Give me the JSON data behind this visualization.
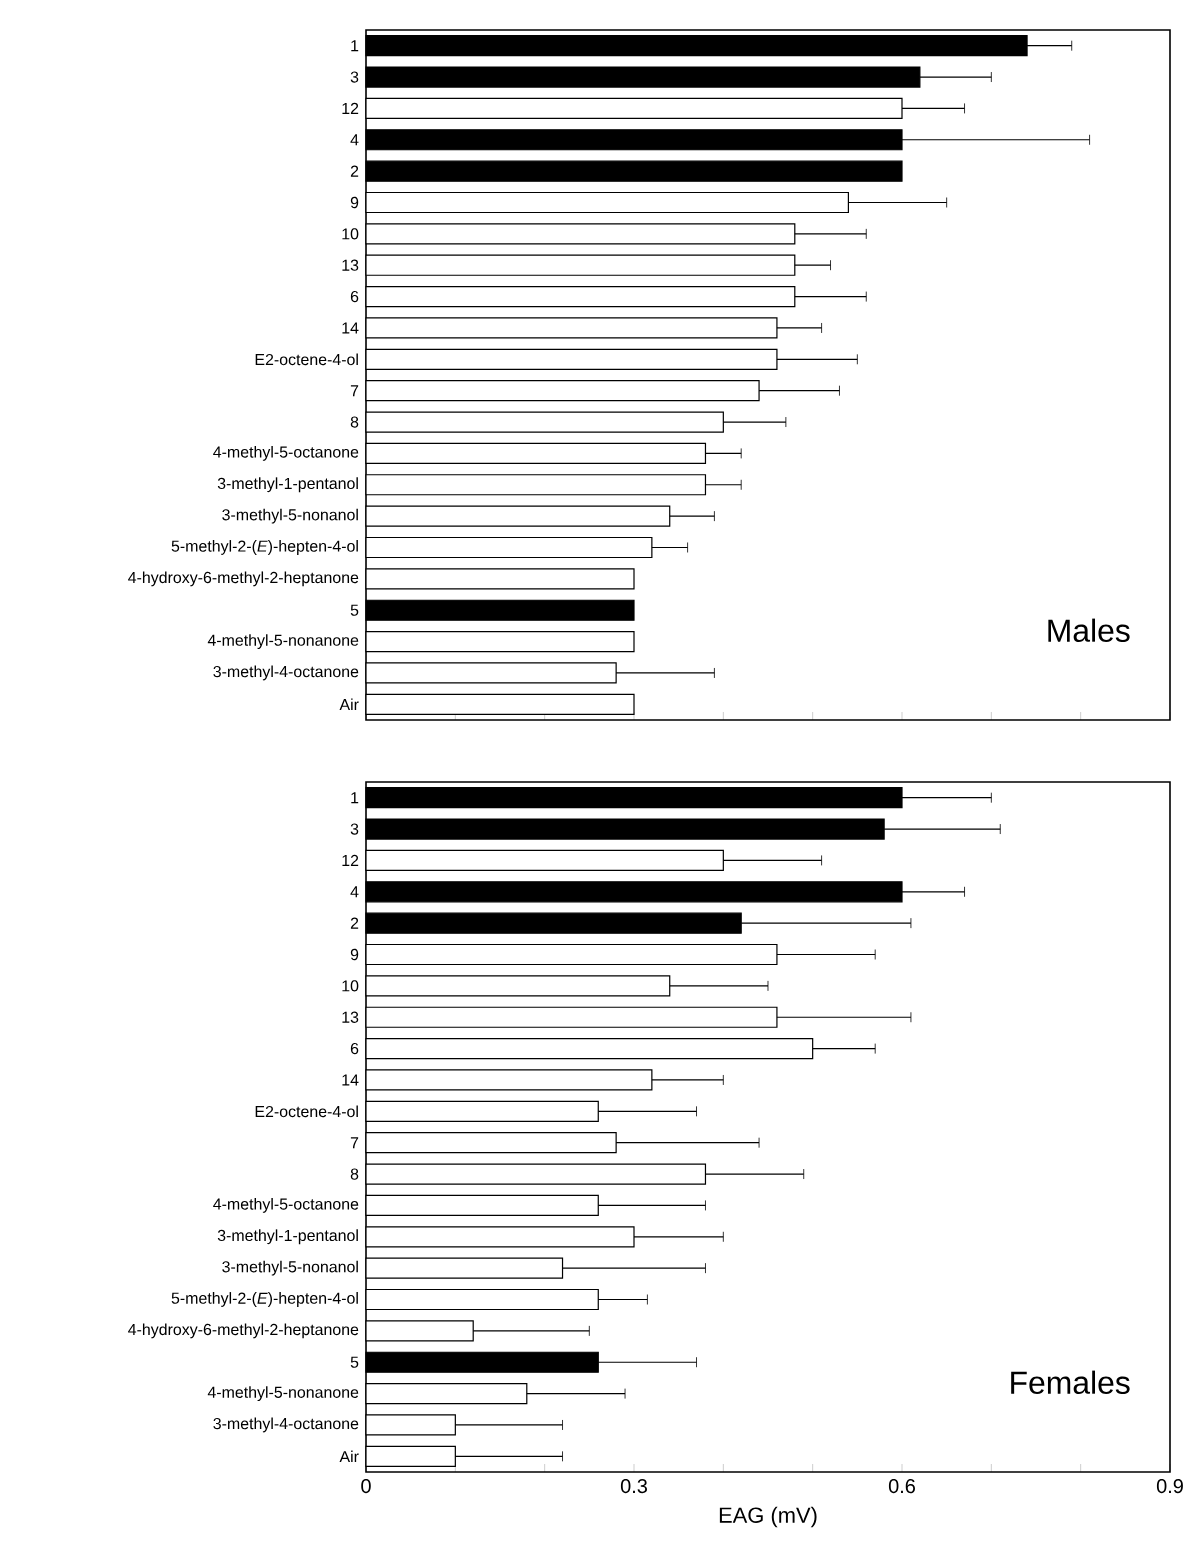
{
  "chart_data": [
    {
      "type": "bar",
      "orientation": "horizontal",
      "tick_labels": "y",
      "categories": [
        "1",
        "3",
        "12",
        "4",
        "2",
        "9",
        "10",
        "13",
        "6",
        "14",
        "E2-octene-4-ol",
        "7",
        "8",
        "4-methyl-5-octanone",
        "3-methyl-1-pentanol",
        "3-methyl-5-nonanol",
        "5-methyl-2-(*E*)-hepten-4-ol",
        "4-hydroxy-6-methyl-2-heptanone",
        "5",
        "4-methyl-5-nonanone",
        "3-methyl-4-octanone",
        "Air"
      ],
      "values": [
        0.74,
        0.62,
        0.6,
        0.6,
        0.6,
        0.54,
        0.48,
        0.48,
        0.48,
        0.46,
        0.46,
        0.44,
        0.4,
        0.38,
        0.38,
        0.34,
        0.32,
        0.3,
        0.3,
        0.3,
        0.28,
        0.3
      ],
      "errors": [
        0.05,
        0.08,
        0.07,
        0.21,
        null,
        0.11,
        0.08,
        0.04,
        0.08,
        0.05,
        0.09,
        0.09,
        0.07,
        0.04,
        0.04,
        0.05,
        0.04,
        null,
        null,
        null,
        0.11,
        null
      ],
      "colors": [
        "#000000",
        "#000000",
        "#ffffff",
        "#000000",
        "#000000",
        "#ffffff",
        "#ffffff",
        "#ffffff",
        "#ffffff",
        "#ffffff",
        "#ffffff",
        "#ffffff",
        "#ffffff",
        "#ffffff",
        "#ffffff",
        "#ffffff",
        "#ffffff",
        "#ffffff",
        "#000000",
        "#ffffff",
        "#ffffff",
        "#ffffff"
      ],
      "xlim": [
        0,
        0.9
      ],
      "xticks": [
        0,
        {
          "value": 0.1,
          "label": null
        },
        {
          "value": 0.2,
          "label": null
        },
        0.3,
        {
          "value": 0.4,
          "label": null
        },
        {
          "value": 0.5,
          "label": null
        },
        0.6,
        {
          "value": 0.7,
          "label": null
        },
        {
          "value": 0.8,
          "label": null
        },
        0.9
      ],
      "annotations": [
        "Males"
      ]
    },
    {
      "type": "bar",
      "orientation": "horizontal",
      "xlabel": "EAG (mV)",
      "categories": [
        "1",
        "3",
        "12",
        "4",
        "2",
        "9",
        "10",
        "13",
        "6",
        "14",
        "E2-octene-4-ol",
        "7",
        "8",
        "4-methyl-5-octanone",
        "3-methyl-1-pentanol",
        "3-methyl-5-nonanol",
        "5-methyl-2-(*E*)-hepten-4-ol",
        "4-hydroxy-6-methyl-2-heptanone",
        "5",
        "4-methyl-5-nonanone",
        "3-methyl-4-octanone",
        "Air"
      ],
      "values": [
        0.6,
        0.58,
        0.4,
        0.6,
        0.42,
        0.46,
        0.34,
        0.46,
        0.5,
        0.32,
        0.26,
        0.28,
        0.38,
        0.26,
        0.3,
        0.22,
        0.26,
        0.12,
        0.26,
        0.18,
        0.1,
        0.1
      ],
      "errors": [
        0.1,
        0.13,
        0.11,
        0.07,
        0.19,
        0.11,
        0.11,
        0.15,
        0.07,
        0.08,
        0.11,
        0.16,
        0.11,
        0.12,
        0.1,
        0.16,
        0.055,
        0.13,
        0.11,
        0.11,
        0.12,
        0.12
      ],
      "colors": [
        "#000000",
        "#000000",
        "#ffffff",
        "#000000",
        "#000000",
        "#ffffff",
        "#ffffff",
        "#ffffff",
        "#ffffff",
        "#ffffff",
        "#ffffff",
        "#ffffff",
        "#ffffff",
        "#ffffff",
        "#ffffff",
        "#ffffff",
        "#ffffff",
        "#ffffff",
        "#000000",
        "#ffffff",
        "#ffffff",
        "#ffffff"
      ],
      "xlim": [
        0,
        0.9
      ],
      "xticks": [
        0,
        {
          "value": 0.1,
          "label": null
        },
        {
          "value": 0.2,
          "label": null
        },
        0.3,
        {
          "value": 0.4,
          "label": null
        },
        {
          "value": 0.5,
          "label": null
        },
        0.6,
        {
          "value": 0.7,
          "label": null
        },
        {
          "value": 0.8,
          "label": null
        },
        0.9
      ],
      "annotations": [
        "Females"
      ]
    }
  ]
}
